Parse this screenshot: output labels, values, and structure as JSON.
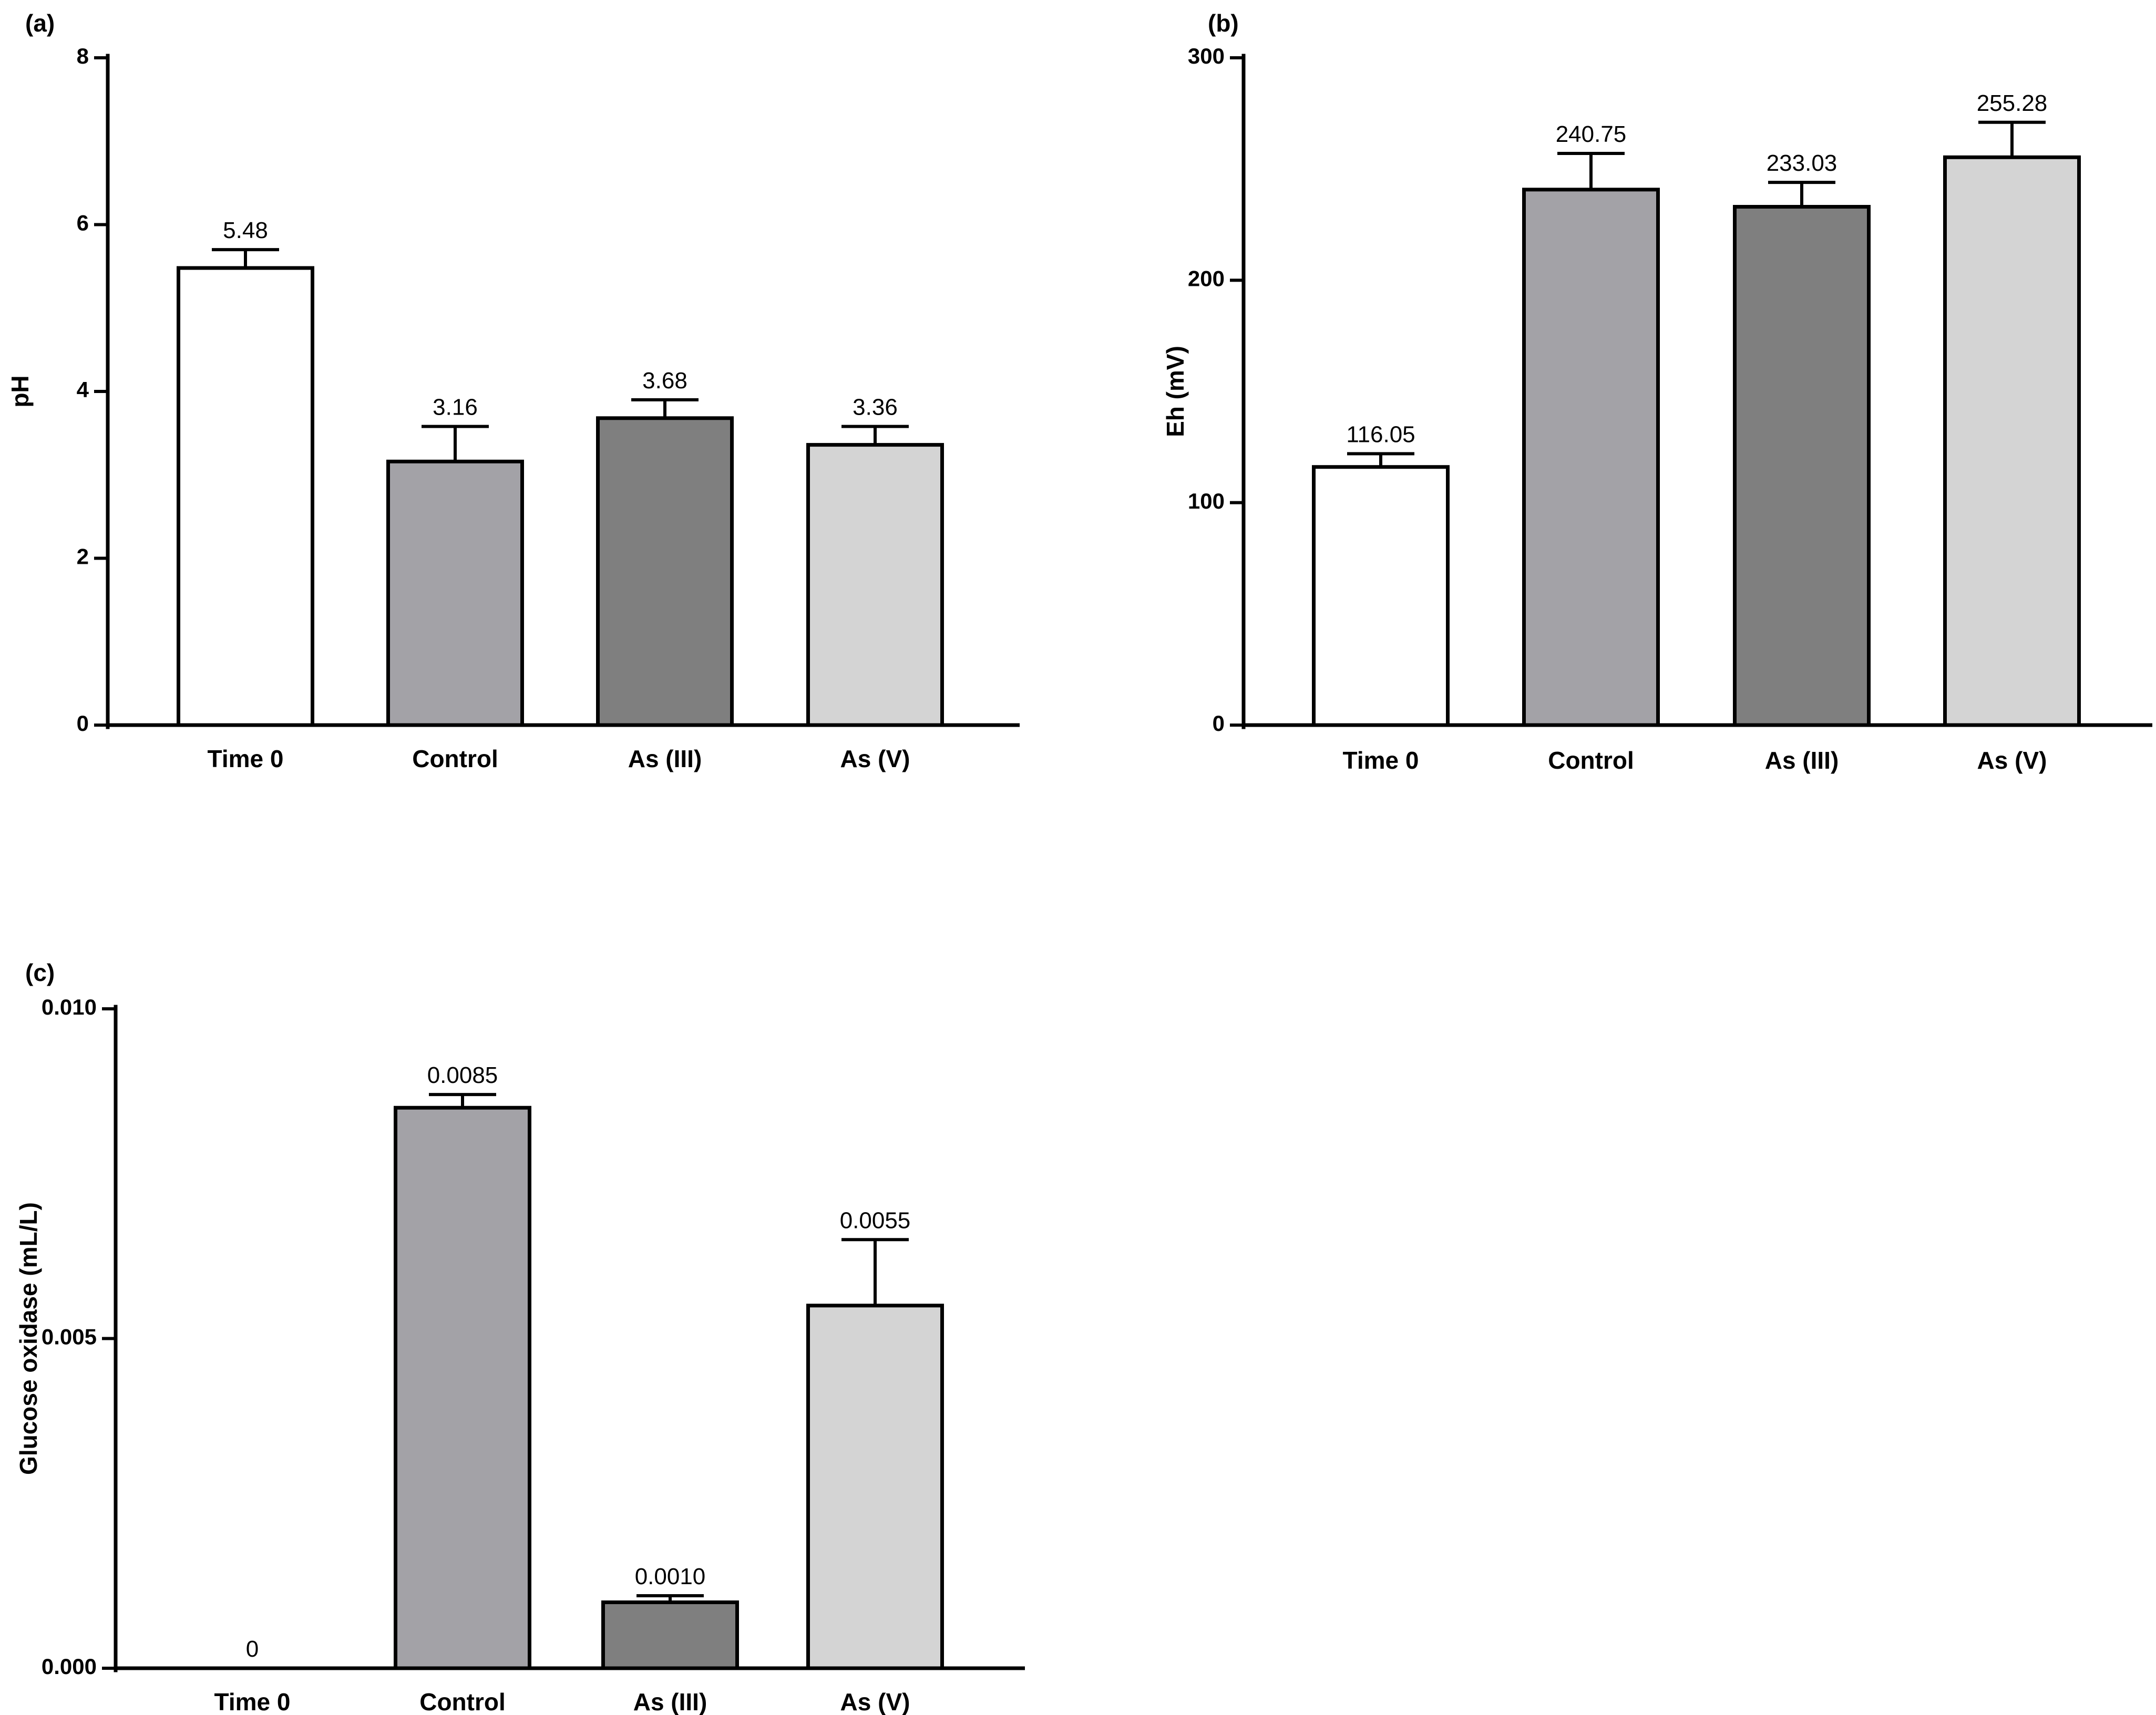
{
  "chart_data": [
    {
      "type": "bar",
      "panel_label": "(a)",
      "categories": [
        "Time 0",
        "Control",
        "As (III)",
        "As (V)"
      ],
      "values": [
        5.48,
        3.16,
        3.68,
        3.36
      ],
      "error_upper": [
        5.7,
        3.58,
        3.9,
        3.58
      ],
      "value_labels": [
        "5.48",
        "3.16",
        "3.68",
        "3.36"
      ],
      "bar_colors": [
        "#ffffff",
        "#a3a2a7",
        "#7f7f7f",
        "#d4d4d4"
      ],
      "title": "",
      "xlabel": "",
      "ylabel": "pH",
      "ylim": [
        0,
        8
      ],
      "yticks": [
        0,
        2,
        4,
        6,
        8
      ],
      "ytick_labels": [
        "0",
        "2",
        "4",
        "6",
        "8"
      ],
      "grid": false
    },
    {
      "type": "bar",
      "panel_label": "(b)",
      "categories": [
        "Time 0",
        "Control",
        "As (III)",
        "As (V)"
      ],
      "values": [
        116.05,
        240.75,
        233.03,
        255.28
      ],
      "error_upper": [
        122,
        257,
        244,
        271
      ],
      "value_labels": [
        "116.05",
        "240.75",
        "233.03",
        "255.28"
      ],
      "bar_colors": [
        "#ffffff",
        "#a3a2a7",
        "#7f7f7f",
        "#d4d4d4"
      ],
      "title": "",
      "xlabel": "",
      "ylabel": "Eh (mV)",
      "ylim": [
        0,
        300
      ],
      "yticks": [
        0,
        100,
        200,
        300
      ],
      "ytick_labels": [
        "0",
        "100",
        "200",
        "300"
      ],
      "grid": false
    },
    {
      "type": "bar",
      "panel_label": "(c)",
      "categories": [
        "Time 0",
        "Control",
        "As (III)",
        "As (V)"
      ],
      "values": [
        0,
        0.0085,
        0.001,
        0.0055
      ],
      "error_upper": [
        0,
        0.0087,
        0.0011,
        0.0065
      ],
      "value_labels": [
        "0",
        "0.0085",
        "0.0010",
        "0.0055"
      ],
      "bar_colors": [
        "#ffffff",
        "#a3a2a7",
        "#7f7f7f",
        "#d4d4d4"
      ],
      "title": "",
      "xlabel": "",
      "ylabel": "Glucose oxidase (mL/L)",
      "ylim": [
        0,
        0.01
      ],
      "yticks": [
        0,
        0.005,
        0.01
      ],
      "ytick_labels": [
        "0.000",
        "0.005",
        "0.010"
      ],
      "grid": false
    }
  ]
}
